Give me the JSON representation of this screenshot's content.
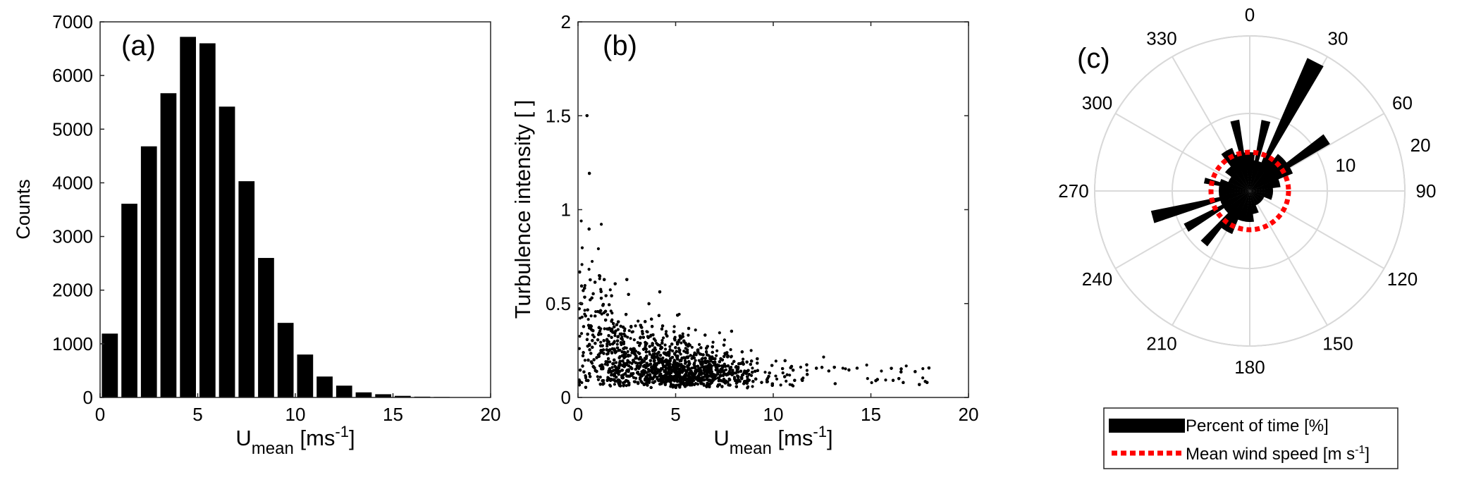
{
  "chart_data": [
    {
      "type": "bar",
      "panel_label": "(a)",
      "xlabel": {
        "base": "U",
        "sub": "mean",
        "unit_prefix": " [ms",
        "unit_sup": "-1",
        "unit_suffix": "]"
      },
      "ylabel": "Counts",
      "xlim": [
        0,
        20
      ],
      "ylim": [
        0,
        7000
      ],
      "xticks": [
        "0",
        "5",
        "10",
        "15",
        "20"
      ],
      "yticks": [
        "0",
        "1000",
        "2000",
        "3000",
        "4000",
        "5000",
        "6000",
        "7000"
      ],
      "bin_width": 1,
      "bin_centers": [
        0.5,
        1.5,
        2.5,
        3.5,
        4.5,
        5.5,
        6.5,
        7.5,
        8.5,
        9.5,
        10.5,
        11.5,
        12.5,
        13.5,
        14.5,
        15.5,
        16.5,
        17.5,
        18.5,
        19.5
      ],
      "values": [
        1190,
        3610,
        4680,
        5670,
        6720,
        6600,
        5420,
        4030,
        2600,
        1390,
        800,
        390,
        220,
        95,
        60,
        30,
        15,
        10,
        5,
        3
      ],
      "bar_color": "#000000"
    },
    {
      "type": "scatter",
      "panel_label": "(b)",
      "xlabel": {
        "base": "U",
        "sub": "mean",
        "unit_prefix": " [ms",
        "unit_sup": "-1",
        "unit_suffix": "]"
      },
      "ylabel": "Turbulence intensity [ ]",
      "xlim": [
        0,
        20
      ],
      "ylim": [
        0,
        2
      ],
      "xticks": [
        "0",
        "5",
        "10",
        "15",
        "20"
      ],
      "yticks": [
        "0",
        "0.5",
        "1",
        "1.5",
        "2"
      ],
      "trend": {
        "form": "dense cloud of points; floor near 0.05, upper envelope decays with wind speed",
        "points_plotted": 6000
      },
      "marker_color": "#000000"
    },
    {
      "type": "polar-histogram",
      "panel_label": "(c)",
      "angle_labels": [
        "0",
        "30",
        "60",
        "90",
        "120",
        "150",
        "180",
        "210",
        "240",
        "270",
        "300",
        "330"
      ],
      "radial_ticks": [
        "10",
        "20"
      ],
      "rmax": 20,
      "direction_convention": "clockwise from north",
      "bins": [
        {
          "dir": 0,
          "value": 5
        },
        {
          "dir": 15,
          "value": 4
        },
        {
          "dir": 30,
          "value": 5
        },
        {
          "dir": 45,
          "value": 6
        },
        {
          "dir": 60,
          "value": 6
        },
        {
          "dir": 75,
          "value": 4
        },
        {
          "dir": 90,
          "value": 3
        },
        {
          "dir": 105,
          "value": 3
        },
        {
          "dir": 120,
          "value": 2
        },
        {
          "dir": 135,
          "value": 2
        },
        {
          "dir": 150,
          "value": 2
        },
        {
          "dir": 165,
          "value": 3
        },
        {
          "dir": 180,
          "value": 4
        },
        {
          "dir": 195,
          "value": 4
        },
        {
          "dir": 210,
          "value": 6
        },
        {
          "dir": 225,
          "value": 4
        },
        {
          "dir": 240,
          "value": 4
        },
        {
          "dir": 255,
          "value": 4
        },
        {
          "dir": 270,
          "value": 4
        },
        {
          "dir": 285,
          "value": 4
        },
        {
          "dir": 300,
          "value": 3
        },
        {
          "dir": 315,
          "value": 4
        },
        {
          "dir": 330,
          "value": 6
        },
        {
          "dir": 345,
          "value": 5
        }
      ],
      "spikes": [
        {
          "dir": 13,
          "value": 9.3
        },
        {
          "dir": 27,
          "value": 18.7
        },
        {
          "dir": 56,
          "value": 12.0
        },
        {
          "dir": 255,
          "value": 13.0
        },
        {
          "dir": 240,
          "value": 9.5
        },
        {
          "dir": 221,
          "value": 9.0
        },
        {
          "dir": 348,
          "value": 9.3
        },
        {
          "dir": 283,
          "value": 6.0
        }
      ],
      "mean_wind_speed_radius": 5.0,
      "bar_color": "#000000",
      "mean_line_color": "#ff0000",
      "grid_color": "#d9d9d9",
      "legend": {
        "bar_label": "Percent of time [%]",
        "line_label_prefix": "Mean wind speed [m s",
        "line_label_sup": "-1",
        "line_label_suffix": "]"
      }
    }
  ]
}
